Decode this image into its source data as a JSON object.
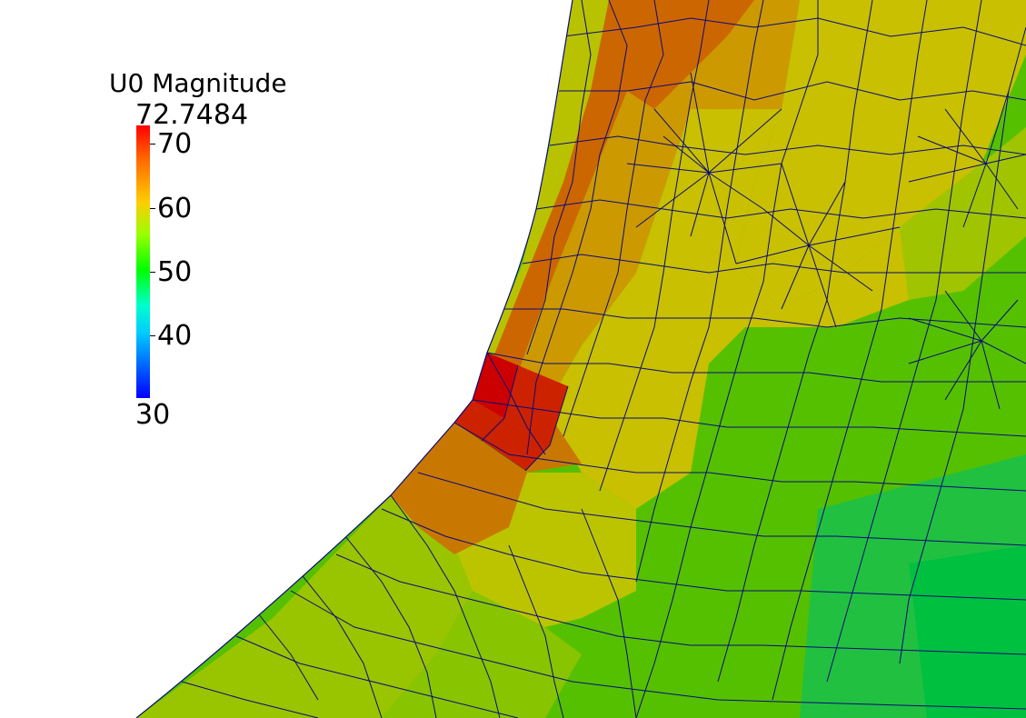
{
  "legend": {
    "title": "U0 Magnitude",
    "max_label": "72.7484",
    "min_label": "30",
    "ticks": [
      "70",
      "60",
      "50",
      "40"
    ],
    "range": [
      30,
      72.7484
    ],
    "colormap": [
      "#0000ff",
      "#00ccff",
      "#00ff00",
      "#ffcc00",
      "#ff0000"
    ]
  },
  "colors": {
    "background": "#ffffff",
    "mesh_edges": "#0a0a7a",
    "red": "#cc1100",
    "orange": "#cc6600",
    "dark_orange": "#c87800",
    "yellow_orange": "#cc9900",
    "yellow": "#c8c000",
    "yellow_green": "#a0c400",
    "green": "#55c000",
    "bright_green": "#22c040",
    "teal_green": "#00c040"
  }
}
